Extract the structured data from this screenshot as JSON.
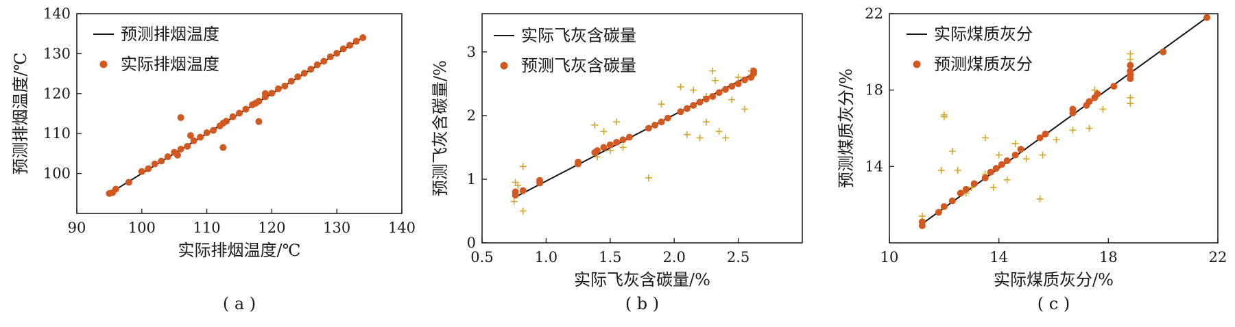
{
  "colors": {
    "fit_line": "#111111",
    "actual_marker": "#d2581f",
    "predicted_marker": "#d4a52c",
    "axis": "#222222"
  },
  "chart_data": [
    {
      "type": "scatter",
      "subtitle": "( a )",
      "xlabel": "实际排烟温度/℃",
      "ylabel": "预测排烟温度/℃",
      "xlim": [
        90,
        140
      ],
      "ylim": [
        90,
        140
      ],
      "xticks": [
        90,
        100,
        110,
        120,
        130,
        140
      ],
      "yticks": [
        100,
        110,
        120,
        130,
        140
      ],
      "tick_labels_x": [
        "90",
        "100",
        "110",
        "120",
        "130",
        "140"
      ],
      "tick_labels_y": [
        "100",
        "110",
        "120",
        "130",
        "140"
      ],
      "legend_position": "top-left",
      "series": [
        {
          "name": "预测排烟温度",
          "kind": "line",
          "x": [
            95,
            134
          ],
          "y": [
            95,
            134
          ]
        },
        {
          "name": "实际排烟温度",
          "kind": "points",
          "marker": "circle",
          "x": [
            95,
            95.5,
            96,
            98,
            100,
            101,
            102,
            103,
            104,
            105,
            105.5,
            106,
            107,
            108,
            109,
            110,
            111,
            112,
            112.5,
            113,
            114,
            115,
            116,
            117,
            117.5,
            118,
            119,
            120,
            121,
            122,
            123,
            124,
            125,
            126,
            127,
            128,
            129,
            130,
            131,
            132,
            133,
            134,
            106,
            107.5,
            112.5,
            118,
            119
          ],
          "y": [
            95,
            95.2,
            96.1,
            97.8,
            100.5,
            101.2,
            102.4,
            103.1,
            104.2,
            105.3,
            104.6,
            106.1,
            106.8,
            108.2,
            109.1,
            110.2,
            110.8,
            111.9,
            112.6,
            113.1,
            114.2,
            115.1,
            116.1,
            117.2,
            117.6,
            118.1,
            119.2,
            120.1,
            121.2,
            121.9,
            123.1,
            124.2,
            125.1,
            126.1,
            127.2,
            128.1,
            129.2,
            130.1,
            131.2,
            132.1,
            133.1,
            134.0,
            114.0,
            109.5,
            106.5,
            113.0,
            120.0
          ]
        }
      ]
    },
    {
      "type": "scatter",
      "subtitle": "( b )",
      "xlabel": "实际飞灰含碳量/%",
      "ylabel": "预测飞灰含碳量/%",
      "xlim": [
        0.5,
        3.0
      ],
      "ylim": [
        0,
        3.6
      ],
      "xticks": [
        0.5,
        1.0,
        1.5,
        2.0,
        2.5
      ],
      "yticks": [
        0,
        1,
        2,
        3
      ],
      "tick_labels_x": [
        "0.5",
        "1.0",
        "1.5",
        "2.0",
        "2.5"
      ],
      "tick_labels_y": [
        "0",
        "1",
        "2",
        "3"
      ],
      "legend_position": "top-left",
      "series": [
        {
          "name": "实际飞灰含碳量",
          "kind": "line",
          "x": [
            0.76,
            2.62
          ],
          "y": [
            0.72,
            2.66
          ]
        },
        {
          "name": "预测飞灰含碳量",
          "kind": "points",
          "marker": "circle",
          "x": [
            0.76,
            0.76,
            0.82,
            0.95,
            0.95,
            1.25,
            1.25,
            1.38,
            1.4,
            1.45,
            1.5,
            1.55,
            1.6,
            1.65,
            1.8,
            1.85,
            1.9,
            1.95,
            2.05,
            2.1,
            2.15,
            2.2,
            2.25,
            2.3,
            2.35,
            2.4,
            2.45,
            2.5,
            2.55,
            2.6,
            2.62,
            2.62
          ],
          "y": [
            0.75,
            0.8,
            0.82,
            0.94,
            0.98,
            1.24,
            1.27,
            1.42,
            1.45,
            1.5,
            1.54,
            1.58,
            1.62,
            1.66,
            1.8,
            1.85,
            1.9,
            1.96,
            2.06,
            2.11,
            2.16,
            2.21,
            2.26,
            2.3,
            2.36,
            2.41,
            2.46,
            2.5,
            2.56,
            2.6,
            2.66,
            2.7
          ]
        },
        {
          "name": "",
          "kind": "points",
          "marker": "plus",
          "x": [
            0.76,
            0.78,
            0.75,
            0.82,
            0.82,
            1.38,
            1.4,
            1.45,
            1.5,
            1.55,
            1.6,
            1.8,
            1.9,
            2.1,
            2.15,
            2.2,
            2.25,
            2.3,
            2.32,
            2.35,
            2.4,
            2.45,
            2.5,
            2.55,
            2.6,
            2.25,
            2.05
          ],
          "y": [
            0.95,
            0.9,
            0.65,
            1.2,
            0.5,
            1.85,
            1.35,
            1.75,
            1.45,
            1.9,
            1.5,
            1.02,
            2.18,
            1.7,
            2.4,
            1.65,
            1.9,
            2.7,
            2.55,
            1.75,
            1.65,
            2.25,
            2.6,
            2.1,
            2.7,
            2.3,
            2.45
          ]
        }
      ]
    },
    {
      "type": "scatter",
      "subtitle": "( c )",
      "xlabel": "实际煤质灰分/%",
      "ylabel": "预测煤质灰分/%",
      "xlim": [
        10,
        22
      ],
      "ylim": [
        10,
        22
      ],
      "xticks": [
        10,
        14,
        18,
        22
      ],
      "yticks": [
        14,
        18,
        22
      ],
      "tick_labels_x": [
        "10",
        "14",
        "18",
        "22"
      ],
      "tick_labels_y": [
        "14",
        "18",
        "22"
      ],
      "legend_position": "top-left",
      "series": [
        {
          "name": "实际煤质灰分",
          "kind": "line",
          "x": [
            11.2,
            21.6
          ],
          "y": [
            11.0,
            21.8
          ]
        },
        {
          "name": "预测煤质灰分",
          "kind": "points",
          "marker": "circle",
          "x": [
            11.2,
            11.2,
            11.8,
            12.0,
            12.3,
            12.6,
            12.8,
            13.1,
            13.5,
            13.7,
            13.9,
            14.1,
            14.3,
            14.6,
            14.8,
            15.5,
            15.7,
            16.7,
            16.7,
            17.2,
            17.3,
            17.5,
            17.6,
            18.2,
            18.8,
            18.8,
            18.8,
            18.8,
            20.0,
            21.6
          ],
          "y": [
            10.9,
            11.1,
            11.6,
            11.9,
            12.2,
            12.6,
            12.8,
            13.1,
            13.4,
            13.7,
            13.9,
            14.1,
            14.3,
            14.6,
            14.9,
            15.5,
            15.7,
            16.8,
            17.0,
            17.2,
            17.4,
            17.6,
            17.8,
            18.2,
            18.6,
            18.8,
            19.0,
            19.3,
            20.0,
            21.8
          ]
        },
        {
          "name": "",
          "kind": "points",
          "marker": "plus",
          "x": [
            11.2,
            11.9,
            12.0,
            12.0,
            12.3,
            12.5,
            12.8,
            13.0,
            13.5,
            13.5,
            13.8,
            14.0,
            14.3,
            14.6,
            15.0,
            15.5,
            15.6,
            16.1,
            16.7,
            17.3,
            17.5,
            17.8,
            18.8,
            18.8,
            18.8,
            18.8
          ],
          "y": [
            11.4,
            13.8,
            16.7,
            16.6,
            14.8,
            13.8,
            12.6,
            12.9,
            15.5,
            13.6,
            12.9,
            14.6,
            13.3,
            15.2,
            14.4,
            12.3,
            14.6,
            15.4,
            15.9,
            16.0,
            18.0,
            17.0,
            19.9,
            19.6,
            17.6,
            17.3
          ]
        }
      ]
    }
  ]
}
